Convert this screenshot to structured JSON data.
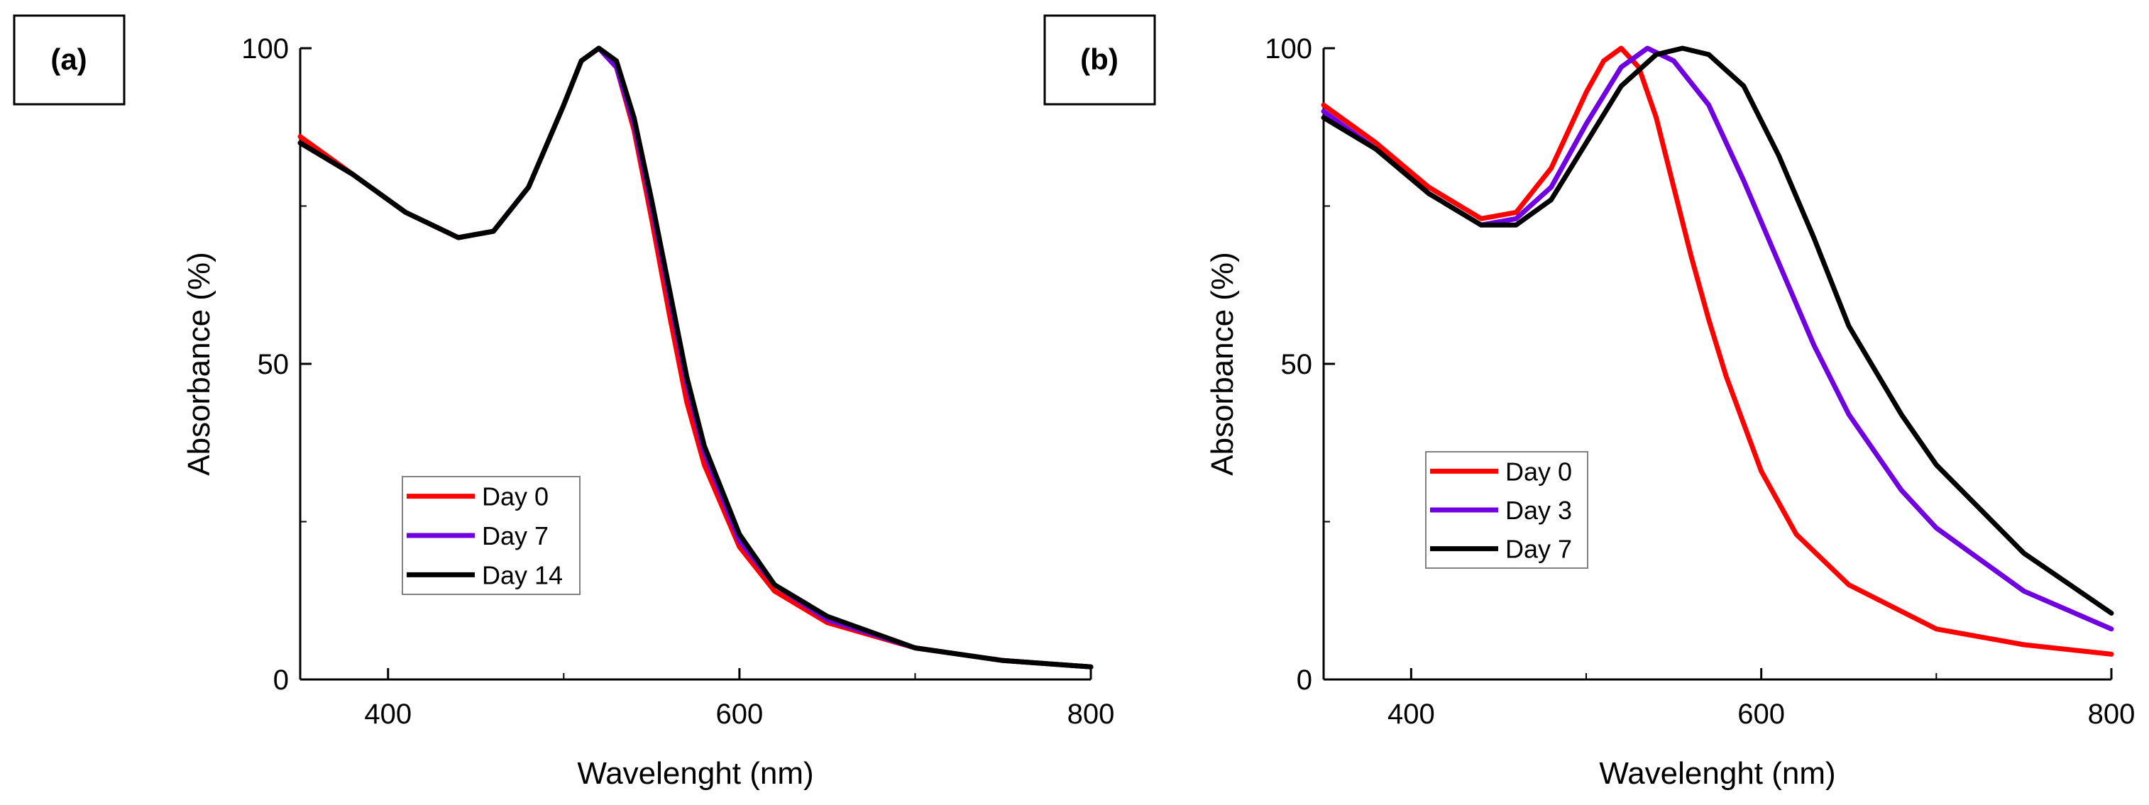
{
  "chart_data": [
    {
      "type": "line",
      "panel_label": "(a)",
      "xlabel": "Wavelenght (nm)",
      "ylabel": "Absorbance (%)",
      "xlim": [
        350,
        800
      ],
      "ylim": [
        0,
        100
      ],
      "x_ticks": [
        "400",
        "600",
        "800"
      ],
      "y_ticks": [
        "0",
        "50",
        "100"
      ],
      "legend_position": "center-left",
      "series": [
        {
          "name": "Day 0",
          "color": "#ff0000",
          "points": [
            [
              350,
              86
            ],
            [
              380,
              80
            ],
            [
              410,
              74
            ],
            [
              440,
              70
            ],
            [
              460,
              71
            ],
            [
              480,
              78
            ],
            [
              500,
              91
            ],
            [
              510,
              98
            ],
            [
              520,
              100
            ],
            [
              530,
              97
            ],
            [
              540,
              87
            ],
            [
              550,
              73
            ],
            [
              560,
              58
            ],
            [
              570,
              44
            ],
            [
              580,
              34
            ],
            [
              600,
              21
            ],
            [
              620,
              14
            ],
            [
              650,
              9
            ],
            [
              700,
              5
            ],
            [
              750,
              3
            ],
            [
              800,
              2
            ]
          ]
        },
        {
          "name": "Day 7",
          "color": "#7000e0",
          "points": [
            [
              350,
              85
            ],
            [
              380,
              80
            ],
            [
              410,
              74
            ],
            [
              440,
              70
            ],
            [
              460,
              71
            ],
            [
              480,
              78
            ],
            [
              500,
              91
            ],
            [
              510,
              98
            ],
            [
              520,
              100
            ],
            [
              530,
              97
            ],
            [
              540,
              88
            ],
            [
              550,
              75
            ],
            [
              560,
              61
            ],
            [
              570,
              47
            ],
            [
              580,
              36
            ],
            [
              600,
              22
            ],
            [
              620,
              15
            ],
            [
              650,
              9.5
            ],
            [
              700,
              5
            ],
            [
              750,
              3
            ],
            [
              800,
              2
            ]
          ]
        },
        {
          "name": "Day 14",
          "color": "#000000",
          "points": [
            [
              350,
              85
            ],
            [
              380,
              80
            ],
            [
              410,
              74
            ],
            [
              440,
              70
            ],
            [
              460,
              71
            ],
            [
              480,
              78
            ],
            [
              500,
              91
            ],
            [
              510,
              98
            ],
            [
              520,
              100
            ],
            [
              530,
              98
            ],
            [
              540,
              89
            ],
            [
              550,
              76
            ],
            [
              560,
              62
            ],
            [
              570,
              48
            ],
            [
              580,
              37
            ],
            [
              600,
              23
            ],
            [
              620,
              15
            ],
            [
              650,
              10
            ],
            [
              700,
              5
            ],
            [
              750,
              3
            ],
            [
              800,
              2
            ]
          ]
        }
      ]
    },
    {
      "type": "line",
      "panel_label": "(b)",
      "xlabel": "Wavelenght (nm)",
      "ylabel": "Absorbance (%)",
      "xlim": [
        350,
        800
      ],
      "ylim": [
        0,
        100
      ],
      "x_ticks": [
        "400",
        "600",
        "800"
      ],
      "y_ticks": [
        "0",
        "50",
        "100"
      ],
      "legend_position": "center-left",
      "series": [
        {
          "name": "Day 0",
          "color": "#ff0000",
          "points": [
            [
              350,
              91
            ],
            [
              380,
              85
            ],
            [
              410,
              78
            ],
            [
              440,
              73
            ],
            [
              460,
              74
            ],
            [
              480,
              81
            ],
            [
              500,
              93
            ],
            [
              510,
              98
            ],
            [
              520,
              100
            ],
            [
              530,
              97
            ],
            [
              540,
              89
            ],
            [
              550,
              78
            ],
            [
              560,
              67
            ],
            [
              570,
              57
            ],
            [
              580,
              48
            ],
            [
              600,
              33
            ],
            [
              620,
              23
            ],
            [
              650,
              15
            ],
            [
              700,
              8
            ],
            [
              750,
              5.5
            ],
            [
              800,
              4
            ]
          ]
        },
        {
          "name": "Day 3",
          "color": "#7000e0",
          "points": [
            [
              350,
              90
            ],
            [
              380,
              84
            ],
            [
              410,
              77
            ],
            [
              440,
              72
            ],
            [
              460,
              73
            ],
            [
              480,
              78
            ],
            [
              500,
              88
            ],
            [
              520,
              97
            ],
            [
              535,
              100
            ],
            [
              550,
              98
            ],
            [
              570,
              91
            ],
            [
              590,
              79
            ],
            [
              610,
              66
            ],
            [
              630,
              53
            ],
            [
              650,
              42
            ],
            [
              680,
              30
            ],
            [
              700,
              24
            ],
            [
              750,
              14
            ],
            [
              800,
              8
            ]
          ]
        },
        {
          "name": "Day 7",
          "color": "#000000",
          "points": [
            [
              350,
              89
            ],
            [
              380,
              84
            ],
            [
              410,
              77
            ],
            [
              440,
              72
            ],
            [
              460,
              72
            ],
            [
              480,
              76
            ],
            [
              500,
              85
            ],
            [
              520,
              94
            ],
            [
              540,
              99
            ],
            [
              555,
              100
            ],
            [
              570,
              99
            ],
            [
              590,
              94
            ],
            [
              610,
              83
            ],
            [
              630,
              70
            ],
            [
              650,
              56
            ],
            [
              680,
              42
            ],
            [
              700,
              34
            ],
            [
              750,
              20
            ],
            [
              800,
              10.5
            ]
          ]
        }
      ]
    }
  ]
}
